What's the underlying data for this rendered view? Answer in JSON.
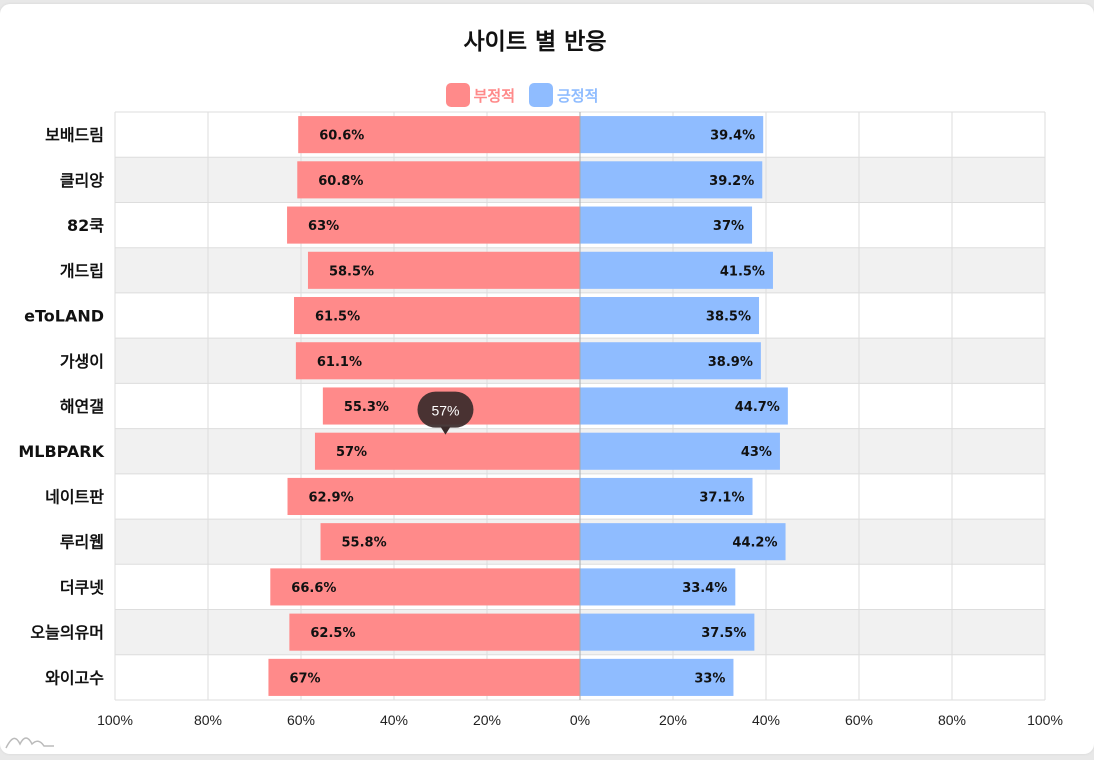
{
  "chart_data": {
    "type": "bar",
    "orientation": "horizontal-diverging",
    "title": "사이트 별 반응",
    "categories": [
      "보배드림",
      "클리앙",
      "82쿡",
      "개드립",
      "eToLAND",
      "가생이",
      "해연갤",
      "MLBPARK",
      "네이트판",
      "루리웹",
      "더쿠넷",
      "오늘의유머",
      "와이고수"
    ],
    "series": [
      {
        "name": "부정적",
        "color": "#ff8a8a",
        "values": [
          60.6,
          60.8,
          63,
          58.5,
          61.5,
          61.1,
          55.3,
          57,
          62.9,
          55.8,
          66.6,
          62.5,
          67
        ],
        "labels": [
          "60.6%",
          "60.8%",
          "63%",
          "58.5%",
          "61.5%",
          "61.1%",
          "55.3%",
          "57%",
          "62.9%",
          "55.8%",
          "66.6%",
          "62.5%",
          "67%"
        ]
      },
      {
        "name": "긍정적",
        "color": "#8fbcff",
        "values": [
          39.4,
          39.2,
          37,
          41.5,
          38.5,
          38.9,
          44.7,
          43,
          37.1,
          44.2,
          33.4,
          37.5,
          33
        ],
        "labels": [
          "39.4%",
          "39.2%",
          "37%",
          "41.5%",
          "38.5%",
          "38.9%",
          "44.7%",
          "43%",
          "37.1%",
          "44.2%",
          "33.4%",
          "37.5%",
          "33%"
        ]
      }
    ],
    "xlim": [
      -100,
      100
    ],
    "x_ticks": [
      "100%",
      "80%",
      "60%",
      "40%",
      "20%",
      "0%",
      "20%",
      "40%",
      "60%",
      "80%",
      "100%"
    ],
    "grid": true,
    "legend_position": "top-center",
    "tooltip": {
      "category": "MLBPARK",
      "series": "부정적",
      "text": "57%"
    }
  }
}
